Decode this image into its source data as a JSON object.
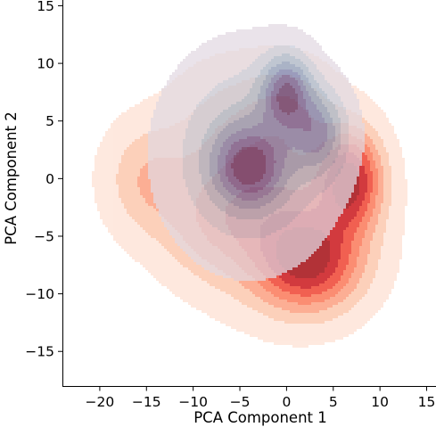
{
  "chart_data": {
    "type": "kde-contour",
    "xlabel": "PCA Component 1",
    "ylabel": "PCA Component 2",
    "xlim": [
      -24,
      16
    ],
    "ylim": [
      -18,
      15.5
    ],
    "x_ticks": [
      -20,
      -15,
      -10,
      -5,
      0,
      5,
      10,
      15
    ],
    "y_ticks": [
      -15,
      -10,
      -5,
      0,
      5,
      10,
      15
    ],
    "grid": false,
    "legend": "none",
    "series": [
      {
        "colormap": "Reds",
        "fill": "filled-density-contours",
        "components": [
          {
            "x": -15,
            "y": 0,
            "sx": 3.2,
            "sy": 3.4,
            "w": 0.1
          },
          {
            "x": -7,
            "y": 4,
            "sx": 4.0,
            "sy": 4.0,
            "w": 0.07
          },
          {
            "x": 0,
            "y": 6,
            "sx": 3.5,
            "sy": 3.0,
            "w": 0.08
          },
          {
            "x": 7,
            "y": 0,
            "sx": 2.3,
            "sy": 3.0,
            "w": 0.25
          },
          {
            "x": 2.5,
            "y": -7.5,
            "sx": 3.8,
            "sy": 2.8,
            "w": 0.22
          },
          {
            "x": 0,
            "y": -3,
            "sx": 5.5,
            "sy": 5.0,
            "w": 0.18
          },
          {
            "x": -8,
            "y": -4,
            "sx": 4.0,
            "sy": 3.5,
            "w": 0.1
          }
        ]
      },
      {
        "colormap": "twilight",
        "fill": "filled-density-contours",
        "components": [
          {
            "x": -4,
            "y": 1,
            "sx": 2.5,
            "sy": 2.2,
            "w": 0.3
          },
          {
            "x": 0,
            "y": 7.5,
            "sx": 1.8,
            "sy": 2.2,
            "w": 0.35
          },
          {
            "x": 3.5,
            "y": 4,
            "sx": 2.0,
            "sy": 2.5,
            "w": 0.25
          },
          {
            "x": -4,
            "y": 2,
            "sx": 5.5,
            "sy": 5.5,
            "w": 0.22
          }
        ]
      }
    ]
  }
}
